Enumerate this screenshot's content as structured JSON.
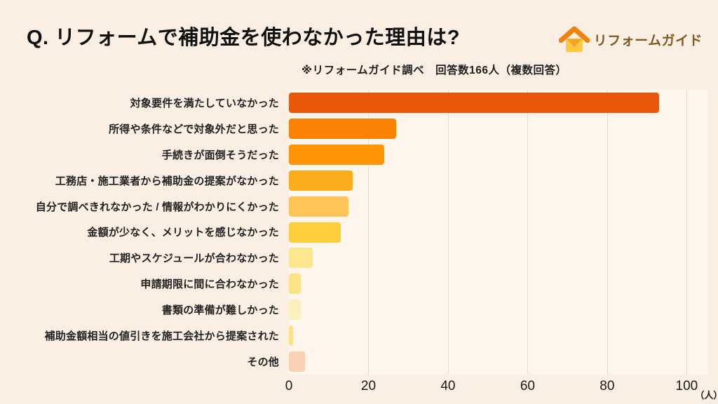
{
  "page": {
    "title": "Q. リフォームで補助金を使わなかった理由は?",
    "note": "※リフォームガイド調べ　回答数166人（複数回答）",
    "background_color": "#fbeee2"
  },
  "logo": {
    "text": "リフォームガイド",
    "roof_color": "#f0830b",
    "body_color": "#ffc840",
    "flap_color": "#f3a61f",
    "text_color": "#7b5d22"
  },
  "chart_data": {
    "type": "bar",
    "orientation": "horizontal",
    "title": "Q. リフォームで補助金を使わなかった理由は?",
    "source_note": "※リフォームガイド調べ　回答数166人（複数回答）",
    "categories": [
      "対象要件を満たしていなかった",
      "所得や条件などで対象外だと思った",
      "手続きが面倒そうだった",
      "工務店・施工業者から補助金の提案がなかった",
      "自分で調べきれなかった / 情報がわかりにくかった",
      "金額が少なく、メリットを感じなかった",
      "工期やスケジュールが合わなかった",
      "申請期限に間に合わなかった",
      "書類の準備が難しかった",
      "補助金額相当の値引きを施工会社から提案された",
      "その他"
    ],
    "values": [
      93,
      27,
      24,
      16,
      15,
      13,
      6,
      3,
      3,
      1,
      4
    ],
    "bar_colors": [
      "#e8580a",
      "#fa8306",
      "#fd9507",
      "#fbab1b",
      "#fec45a",
      "#ffce3c",
      "#fce78f",
      "#fae385",
      "#fcf0be",
      "#fae385",
      "#fbcfb3"
    ],
    "xticks": [
      0,
      20,
      40,
      60,
      80,
      100
    ],
    "xlim": [
      0,
      105.4
    ],
    "x_unit": "（人）",
    "grid": true,
    "grid_color": "#e5ded4",
    "plot_background": "#fef5ed"
  }
}
